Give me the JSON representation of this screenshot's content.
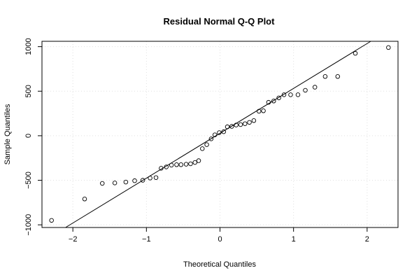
{
  "chart_data": {
    "type": "scatter",
    "title": "Residual Normal Q-Q Plot",
    "xlabel": "Theoretical Quantiles",
    "ylabel": "Sample Quantiles",
    "xlim": [
      -2.42,
      2.42
    ],
    "ylim": [
      -1030,
      1060
    ],
    "x_ticks": [
      -2,
      -1,
      0,
      1,
      2
    ],
    "x_tick_labels": [
      "−2",
      "−1",
      "0",
      "1",
      "2"
    ],
    "y_ticks": [
      -1000,
      -500,
      0,
      500,
      1000
    ],
    "y_tick_labels": [
      "−1000",
      "−500",
      "0",
      "500",
      "1000"
    ],
    "grid": true,
    "reference_line": {
      "from": [
        -2.1,
        -1030
      ],
      "to": [
        2.05,
        1060
      ]
    },
    "points": [
      {
        "x": -2.29,
        "y": -950
      },
      {
        "x": -1.84,
        "y": -710
      },
      {
        "x": -1.6,
        "y": -535
      },
      {
        "x": -1.43,
        "y": -530
      },
      {
        "x": -1.28,
        "y": -520
      },
      {
        "x": -1.16,
        "y": -505
      },
      {
        "x": -1.05,
        "y": -500
      },
      {
        "x": -0.95,
        "y": -475
      },
      {
        "x": -0.87,
        "y": -470
      },
      {
        "x": -0.8,
        "y": -365
      },
      {
        "x": -0.73,
        "y": -350
      },
      {
        "x": -0.66,
        "y": -330
      },
      {
        "x": -0.59,
        "y": -325
      },
      {
        "x": -0.53,
        "y": -325
      },
      {
        "x": -0.46,
        "y": -320
      },
      {
        "x": -0.4,
        "y": -315
      },
      {
        "x": -0.34,
        "y": -300
      },
      {
        "x": -0.29,
        "y": -280
      },
      {
        "x": -0.24,
        "y": -145
      },
      {
        "x": -0.18,
        "y": -100
      },
      {
        "x": -0.12,
        "y": -35
      },
      {
        "x": -0.07,
        "y": 10
      },
      {
        "x": -0.01,
        "y": 35
      },
      {
        "x": 0.05,
        "y": 45
      },
      {
        "x": 0.1,
        "y": 100
      },
      {
        "x": 0.16,
        "y": 105
      },
      {
        "x": 0.22,
        "y": 120
      },
      {
        "x": 0.28,
        "y": 125
      },
      {
        "x": 0.34,
        "y": 135
      },
      {
        "x": 0.4,
        "y": 150
      },
      {
        "x": 0.46,
        "y": 170
      },
      {
        "x": 0.53,
        "y": 275
      },
      {
        "x": 0.59,
        "y": 280
      },
      {
        "x": 0.66,
        "y": 375
      },
      {
        "x": 0.73,
        "y": 390
      },
      {
        "x": 0.8,
        "y": 425
      },
      {
        "x": 0.87,
        "y": 460
      },
      {
        "x": 0.96,
        "y": 460
      },
      {
        "x": 1.06,
        "y": 460
      },
      {
        "x": 1.16,
        "y": 510
      },
      {
        "x": 1.29,
        "y": 545
      },
      {
        "x": 1.43,
        "y": 665
      },
      {
        "x": 1.6,
        "y": 665
      },
      {
        "x": 1.84,
        "y": 925
      },
      {
        "x": 2.29,
        "y": 990
      }
    ]
  }
}
